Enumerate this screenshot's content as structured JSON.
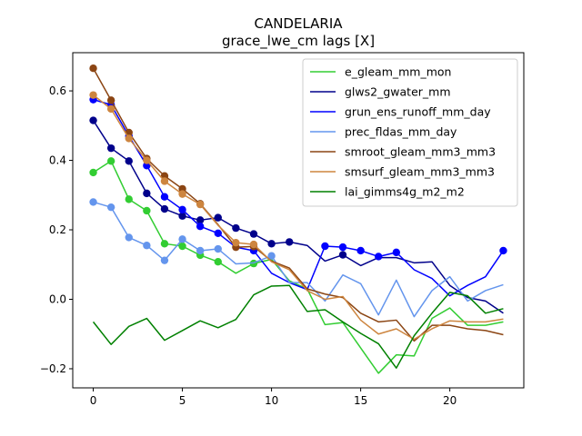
{
  "chart_data": {
    "type": "line",
    "title": "CANDELARIA",
    "subtitle": "grace_lwe_cm lags [X]",
    "xlabel": "",
    "ylabel": "",
    "xlim": [
      -1.15,
      24.15
    ],
    "ylim": [
      -0.255,
      0.71
    ],
    "xticks": [
      0,
      5,
      10,
      15,
      20
    ],
    "yticks": [
      -0.2,
      0.0,
      0.2,
      0.4,
      0.6
    ],
    "ytick_labels": [
      "−0.2",
      "0.0",
      "0.2",
      "0.4",
      "0.6"
    ],
    "legend_position": "top-right",
    "grid": false,
    "x": [
      0,
      1,
      2,
      3,
      4,
      5,
      6,
      7,
      8,
      9,
      10,
      11,
      12,
      13,
      14,
      15,
      16,
      17,
      18,
      19,
      20,
      21,
      22,
      23
    ],
    "series": [
      {
        "name": "e_gleam_mm_mon",
        "color": "#32cd32",
        "values": [
          0.365,
          0.398,
          0.288,
          0.255,
          0.16,
          0.153,
          0.127,
          0.108,
          0.075,
          0.103,
          0.115,
          0.053,
          0.03,
          -0.073,
          -0.067,
          -0.14,
          -0.213,
          -0.16,
          -0.163,
          -0.055,
          -0.025,
          -0.075,
          -0.075,
          -0.065
        ],
        "markers": [
          0,
          1,
          2,
          3,
          4,
          5,
          6,
          7,
          9
        ]
      },
      {
        "name": "glws2_gwater_mm",
        "color": "#00008b",
        "values": [
          0.515,
          0.435,
          0.398,
          0.305,
          0.26,
          0.24,
          0.228,
          0.235,
          0.205,
          0.188,
          0.16,
          0.165,
          0.155,
          0.11,
          0.128,
          0.097,
          0.12,
          0.12,
          0.105,
          0.108,
          0.04,
          0.005,
          -0.005,
          -0.04
        ],
        "markers": [
          0,
          1,
          2,
          3,
          4,
          5,
          6,
          7,
          8,
          9,
          10,
          11,
          14
        ]
      },
      {
        "name": "grun_ens_runoff_mm_day",
        "color": "#0000ff",
        "values": [
          0.575,
          0.56,
          0.47,
          0.385,
          0.295,
          0.258,
          0.21,
          0.19,
          0.15,
          0.14,
          0.075,
          0.048,
          0.028,
          0.153,
          0.15,
          0.14,
          0.123,
          0.135,
          0.085,
          0.06,
          0.01,
          0.04,
          0.065,
          0.14
        ],
        "markers": [
          0,
          1,
          2,
          3,
          4,
          5,
          6,
          7,
          9,
          13,
          14,
          15,
          16,
          17,
          23
        ]
      },
      {
        "name": "prec_fldas_mm_day",
        "color": "#6495ed",
        "values": [
          0.28,
          0.265,
          0.178,
          0.155,
          0.112,
          0.173,
          0.14,
          0.145,
          0.102,
          0.105,
          0.125,
          0.048,
          0.048,
          -0.005,
          0.07,
          0.045,
          -0.045,
          0.055,
          -0.05,
          0.025,
          0.065,
          -0.005,
          0.025,
          0.042
        ],
        "markers": [
          0,
          1,
          2,
          3,
          4,
          5,
          6,
          7,
          10
        ]
      },
      {
        "name": "smroot_gleam_mm3_mm3",
        "color": "#8b4513",
        "values": [
          0.665,
          0.573,
          0.48,
          0.405,
          0.355,
          0.318,
          0.275,
          0.215,
          0.15,
          0.152,
          0.11,
          0.09,
          0.03,
          0.015,
          0.005,
          -0.04,
          -0.065,
          -0.06,
          -0.12,
          -0.075,
          -0.075,
          -0.085,
          -0.09,
          -0.102
        ],
        "markers": [
          0,
          1,
          2,
          3,
          4,
          5,
          6,
          8,
          9
        ]
      },
      {
        "name": "smsurf_gleam_mm3_mm3",
        "color": "#cd853f",
        "values": [
          0.588,
          0.548,
          0.463,
          0.4,
          0.34,
          0.303,
          0.273,
          0.213,
          0.163,
          0.158,
          0.108,
          0.085,
          0.025,
          0.0,
          0.008,
          -0.06,
          -0.1,
          -0.085,
          -0.115,
          -0.085,
          -0.062,
          -0.065,
          -0.065,
          -0.057
        ],
        "markers": [
          0,
          1,
          2,
          3,
          4,
          5,
          6,
          8,
          9
        ]
      },
      {
        "name": "lai_gimms4g_m2_m2",
        "color": "#008000",
        "values": [
          -0.065,
          -0.13,
          -0.078,
          -0.055,
          -0.118,
          -0.09,
          -0.062,
          -0.082,
          -0.058,
          0.013,
          0.038,
          0.04,
          -0.035,
          -0.03,
          -0.065,
          -0.098,
          -0.128,
          -0.198,
          -0.105,
          -0.04,
          0.02,
          0.01,
          -0.04,
          -0.027
        ],
        "markers": []
      }
    ]
  }
}
